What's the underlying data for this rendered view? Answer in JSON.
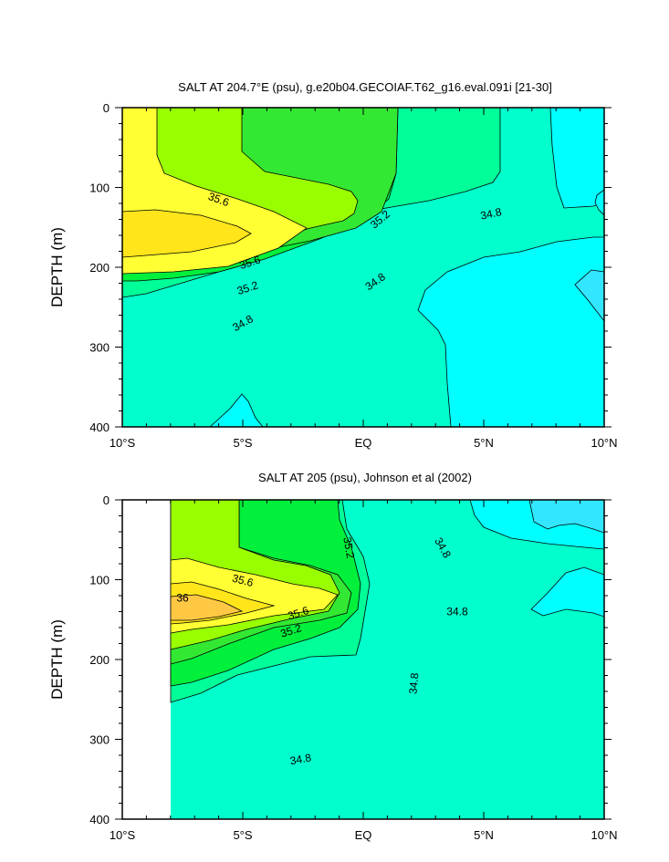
{
  "chart_data": [
    {
      "type": "heatmap",
      "title": "SALT AT 204.7°E (psu), g.e20b04.GECOIAF.T62_g16.eval.091i [21-30]",
      "xlabel": "",
      "ylabel": "DEPTH (m)",
      "xlim": [
        -10,
        10
      ],
      "ylim": [
        0,
        400
      ],
      "y_reversed": true,
      "x_ticks": [
        -10,
        -5,
        0,
        5,
        10
      ],
      "x_tick_labels": [
        "10°S",
        "5°S",
        "EQ",
        "5°N",
        "10°N"
      ],
      "y_ticks": [
        0,
        100,
        200,
        300,
        400
      ],
      "y_tick_labels": [
        "0",
        "100",
        "200",
        "300",
        "400"
      ],
      "data_start_lat": -10,
      "contour_labels": [
        {
          "text": "35.6",
          "lat": -6.0,
          "depth": 115,
          "angle": 20
        },
        {
          "text": "35.6",
          "lat": -4.7,
          "depth": 194,
          "angle": -18
        },
        {
          "text": "35.2",
          "lat": -4.8,
          "depth": 226,
          "angle": -18
        },
        {
          "text": "34.8",
          "lat": -5.0,
          "depth": 270,
          "angle": -30
        },
        {
          "text": "35.2",
          "lat": 0.7,
          "depth": 140,
          "angle": -40
        },
        {
          "text": "34.8",
          "lat": 0.5,
          "depth": 218,
          "angle": -35
        },
        {
          "text": "34.8",
          "lat": 5.3,
          "depth": 133,
          "angle": -12
        }
      ]
    },
    {
      "type": "heatmap",
      "title": "SALT AT 205 (psu), Johnson et al (2002)",
      "xlabel": "",
      "ylabel": "DEPTH (m)",
      "xlim": [
        -10,
        10
      ],
      "ylim": [
        0,
        400
      ],
      "y_reversed": true,
      "x_ticks": [
        -10,
        -5,
        0,
        5,
        10
      ],
      "x_tick_labels": [
        "10°S",
        "5°S",
        "EQ",
        "5°N",
        "10°N"
      ],
      "y_ticks": [
        0,
        100,
        200,
        300,
        400
      ],
      "y_tick_labels": [
        "0",
        "100",
        "200",
        "300",
        "400"
      ],
      "data_start_lat": -8,
      "contour_labels": [
        {
          "text": "35.6",
          "lat": -5.0,
          "depth": 101,
          "angle": 15
        },
        {
          "text": "36",
          "lat": -7.5,
          "depth": 123,
          "angle": 0
        },
        {
          "text": "35.6",
          "lat": -2.7,
          "depth": 142,
          "angle": -18
        },
        {
          "text": "35.2",
          "lat": -3.0,
          "depth": 164,
          "angle": -18
        },
        {
          "text": "35.2",
          "lat": -0.6,
          "depth": 60,
          "angle": 80
        },
        {
          "text": "34.8",
          "lat": 3.3,
          "depth": 60,
          "angle": 60
        },
        {
          "text": "34.8",
          "lat": 3.9,
          "depth": 140,
          "angle": 0
        },
        {
          "text": "34.8",
          "lat": 2.1,
          "depth": 230,
          "angle": -85
        },
        {
          "text": "34.8",
          "lat": -2.6,
          "depth": 325,
          "angle": -10
        }
      ]
    }
  ],
  "colors": {
    "c1": "#00ffff",
    "c2": "#33e6ff",
    "c3": "#00ffcc",
    "c4": "#00ff99",
    "c5": "#00f03c",
    "c6": "#33e833",
    "c7": "#99ff00",
    "c8": "#ffff33",
    "c9": "#ffe51a",
    "c10": "#ffc844"
  }
}
